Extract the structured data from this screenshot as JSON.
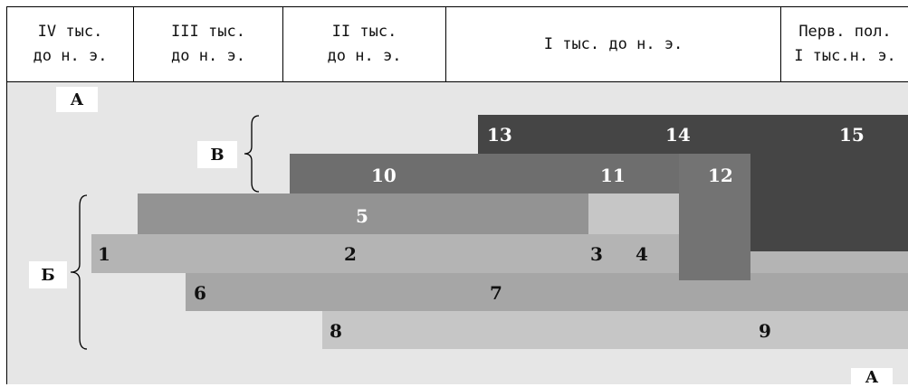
{
  "timeline": {
    "columns": [
      {
        "label": "IV тыс.\nдо н. э."
      },
      {
        "label": "III тыс.\nдо н. э."
      },
      {
        "label": "II тыс.\nдо н. э."
      },
      {
        "label": "I тыс. до н. э."
      },
      {
        "label": "Перв. пол.\nI тыс.н. э."
      }
    ]
  },
  "tags": {
    "a_top": "А",
    "b": "Б",
    "v": "В",
    "a_bottom": "А"
  },
  "bands": {
    "n1": "1",
    "n2": "2",
    "n3": "3",
    "n4": "4",
    "n5": "5",
    "n6": "6",
    "n7": "7",
    "n8": "8",
    "n9": "9",
    "n10": "10",
    "n11": "11",
    "n12": "12",
    "n13": "13",
    "n14": "14",
    "n15": "15"
  },
  "colors": {
    "background": "#e6e6e6",
    "band_lightest": "#c6c6c6",
    "band_light": "#b4b4b4",
    "band_mid": "#a6a6a6",
    "band_5": "#939393",
    "band_10": "#6e6e6e",
    "band_12": "#737373",
    "band_darkest": "#454545"
  }
}
